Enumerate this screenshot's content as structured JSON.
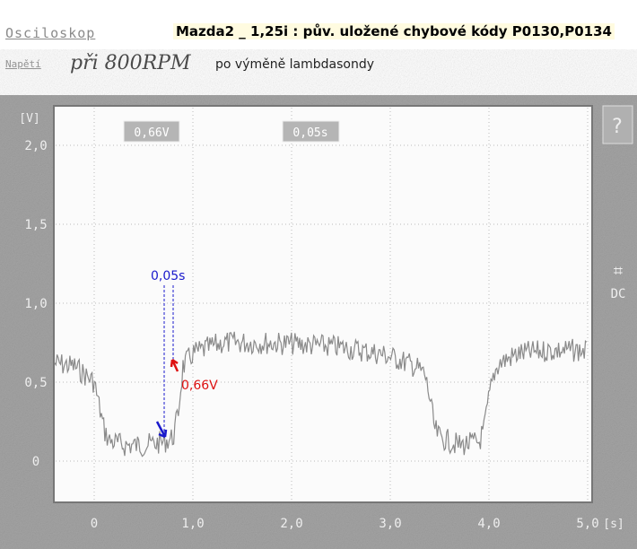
{
  "header": {
    "app_label": "Osciloskop",
    "title": "Mazda2 _ 1,25i :  pův. uložené chybové kódy P0130,P0134",
    "mode_label": "Napětí",
    "handwritten_note": "při 800RPM",
    "subtitle": "po výměně lambdasondy"
  },
  "scope": {
    "voltage_readout": "0,66V",
    "time_readout": "0,05s",
    "coupling": "DC",
    "help_icon": "question-mark-icon",
    "trigger_icon": "trigger-icon"
  },
  "annotations": {
    "time_label": "0,05s",
    "voltage_label": "0,66V",
    "time_color": "#1a1acc",
    "voltage_color": "#dd1111"
  },
  "chart_data": {
    "type": "line",
    "ylabel": "[V]",
    "xlabel": "[s]",
    "xlim": [
      -0.4,
      5.0
    ],
    "ylim": [
      -0.4,
      2.1
    ],
    "grid": true,
    "x_ticks": [
      "0",
      "1,0",
      "2,0",
      "3,0",
      "4,0",
      "5,0"
    ],
    "y_ticks": [
      "0",
      "0,5",
      "1,0",
      "1,5",
      "2,0"
    ],
    "series": [
      {
        "x": [
          -0.4,
          -0.2,
          0.0,
          0.05,
          0.1,
          0.15,
          0.3,
          0.5,
          0.7,
          0.8,
          0.85,
          0.9,
          1.0,
          1.3,
          1.7,
          2.1,
          2.5,
          2.9,
          3.1,
          3.25,
          3.35,
          3.4,
          3.45,
          3.5,
          3.7,
          3.9,
          3.95,
          4.0,
          4.05,
          4.1,
          4.3,
          4.6,
          5.0
        ],
        "y": [
          0.62,
          0.6,
          0.5,
          0.35,
          0.2,
          0.13,
          0.1,
          0.1,
          0.12,
          0.15,
          0.3,
          0.6,
          0.68,
          0.75,
          0.75,
          0.74,
          0.72,
          0.68,
          0.64,
          0.6,
          0.55,
          0.4,
          0.2,
          0.15,
          0.1,
          0.12,
          0.2,
          0.4,
          0.55,
          0.62,
          0.68,
          0.7,
          0.7
        ]
      }
    ]
  }
}
